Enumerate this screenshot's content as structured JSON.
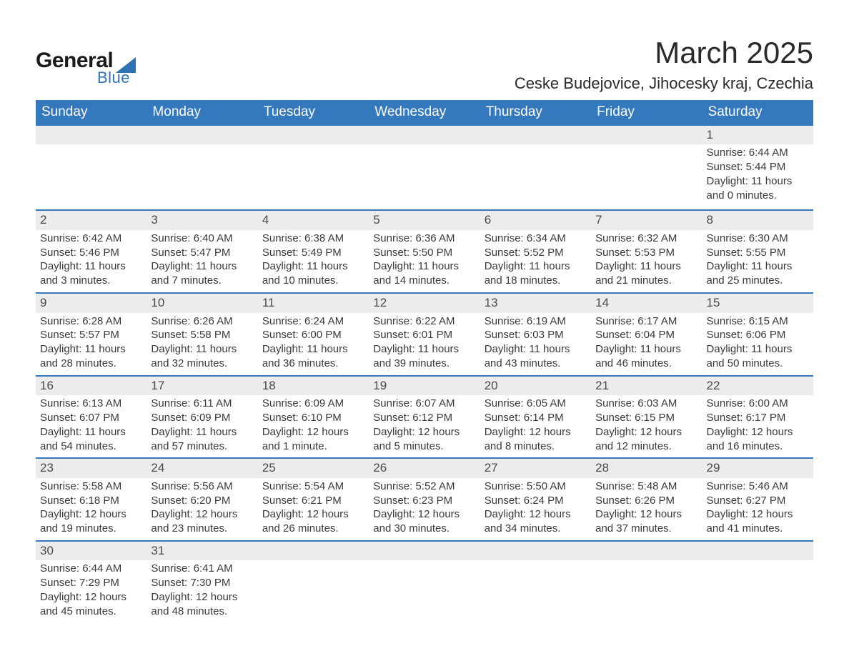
{
  "logo": {
    "general": "General",
    "blue": "Blue",
    "tri_color": "#2f73b5"
  },
  "title": {
    "month": "March 2025",
    "location": "Ceske Budejovice, Jihocesky kraj, Czechia"
  },
  "style": {
    "header_bg": "#3478bd",
    "header_fg": "#ffffff",
    "daynum_bg": "#ececec",
    "row_border": "#3478bd",
    "text_color": "#3a3a3a",
    "title_fontsize": 42,
    "location_fontsize": 22,
    "header_fontsize": 19,
    "daynum_fontsize": 17,
    "body_fontsize": 15
  },
  "daysOfWeek": [
    "Sunday",
    "Monday",
    "Tuesday",
    "Wednesday",
    "Thursday",
    "Friday",
    "Saturday"
  ],
  "weeks": [
    [
      null,
      null,
      null,
      null,
      null,
      null,
      {
        "n": "1",
        "sr": "6:44 AM",
        "ss": "5:44 PM",
        "dl": "11 hours and 0 minutes."
      }
    ],
    [
      {
        "n": "2",
        "sr": "6:42 AM",
        "ss": "5:46 PM",
        "dl": "11 hours and 3 minutes."
      },
      {
        "n": "3",
        "sr": "6:40 AM",
        "ss": "5:47 PM",
        "dl": "11 hours and 7 minutes."
      },
      {
        "n": "4",
        "sr": "6:38 AM",
        "ss": "5:49 PM",
        "dl": "11 hours and 10 minutes."
      },
      {
        "n": "5",
        "sr": "6:36 AM",
        "ss": "5:50 PM",
        "dl": "11 hours and 14 minutes."
      },
      {
        "n": "6",
        "sr": "6:34 AM",
        "ss": "5:52 PM",
        "dl": "11 hours and 18 minutes."
      },
      {
        "n": "7",
        "sr": "6:32 AM",
        "ss": "5:53 PM",
        "dl": "11 hours and 21 minutes."
      },
      {
        "n": "8",
        "sr": "6:30 AM",
        "ss": "5:55 PM",
        "dl": "11 hours and 25 minutes."
      }
    ],
    [
      {
        "n": "9",
        "sr": "6:28 AM",
        "ss": "5:57 PM",
        "dl": "11 hours and 28 minutes."
      },
      {
        "n": "10",
        "sr": "6:26 AM",
        "ss": "5:58 PM",
        "dl": "11 hours and 32 minutes."
      },
      {
        "n": "11",
        "sr": "6:24 AM",
        "ss": "6:00 PM",
        "dl": "11 hours and 36 minutes."
      },
      {
        "n": "12",
        "sr": "6:22 AM",
        "ss": "6:01 PM",
        "dl": "11 hours and 39 minutes."
      },
      {
        "n": "13",
        "sr": "6:19 AM",
        "ss": "6:03 PM",
        "dl": "11 hours and 43 minutes."
      },
      {
        "n": "14",
        "sr": "6:17 AM",
        "ss": "6:04 PM",
        "dl": "11 hours and 46 minutes."
      },
      {
        "n": "15",
        "sr": "6:15 AM",
        "ss": "6:06 PM",
        "dl": "11 hours and 50 minutes."
      }
    ],
    [
      {
        "n": "16",
        "sr": "6:13 AM",
        "ss": "6:07 PM",
        "dl": "11 hours and 54 minutes."
      },
      {
        "n": "17",
        "sr": "6:11 AM",
        "ss": "6:09 PM",
        "dl": "11 hours and 57 minutes."
      },
      {
        "n": "18",
        "sr": "6:09 AM",
        "ss": "6:10 PM",
        "dl": "12 hours and 1 minute."
      },
      {
        "n": "19",
        "sr": "6:07 AM",
        "ss": "6:12 PM",
        "dl": "12 hours and 5 minutes."
      },
      {
        "n": "20",
        "sr": "6:05 AM",
        "ss": "6:14 PM",
        "dl": "12 hours and 8 minutes."
      },
      {
        "n": "21",
        "sr": "6:03 AM",
        "ss": "6:15 PM",
        "dl": "12 hours and 12 minutes."
      },
      {
        "n": "22",
        "sr": "6:00 AM",
        "ss": "6:17 PM",
        "dl": "12 hours and 16 minutes."
      }
    ],
    [
      {
        "n": "23",
        "sr": "5:58 AM",
        "ss": "6:18 PM",
        "dl": "12 hours and 19 minutes."
      },
      {
        "n": "24",
        "sr": "5:56 AM",
        "ss": "6:20 PM",
        "dl": "12 hours and 23 minutes."
      },
      {
        "n": "25",
        "sr": "5:54 AM",
        "ss": "6:21 PM",
        "dl": "12 hours and 26 minutes."
      },
      {
        "n": "26",
        "sr": "5:52 AM",
        "ss": "6:23 PM",
        "dl": "12 hours and 30 minutes."
      },
      {
        "n": "27",
        "sr": "5:50 AM",
        "ss": "6:24 PM",
        "dl": "12 hours and 34 minutes."
      },
      {
        "n": "28",
        "sr": "5:48 AM",
        "ss": "6:26 PM",
        "dl": "12 hours and 37 minutes."
      },
      {
        "n": "29",
        "sr": "5:46 AM",
        "ss": "6:27 PM",
        "dl": "12 hours and 41 minutes."
      }
    ],
    [
      {
        "n": "30",
        "sr": "6:44 AM",
        "ss": "7:29 PM",
        "dl": "12 hours and 45 minutes."
      },
      {
        "n": "31",
        "sr": "6:41 AM",
        "ss": "7:30 PM",
        "dl": "12 hours and 48 minutes."
      },
      null,
      null,
      null,
      null,
      null
    ]
  ],
  "labels": {
    "sunrise": "Sunrise: ",
    "sunset": "Sunset: ",
    "daylight": "Daylight: "
  }
}
